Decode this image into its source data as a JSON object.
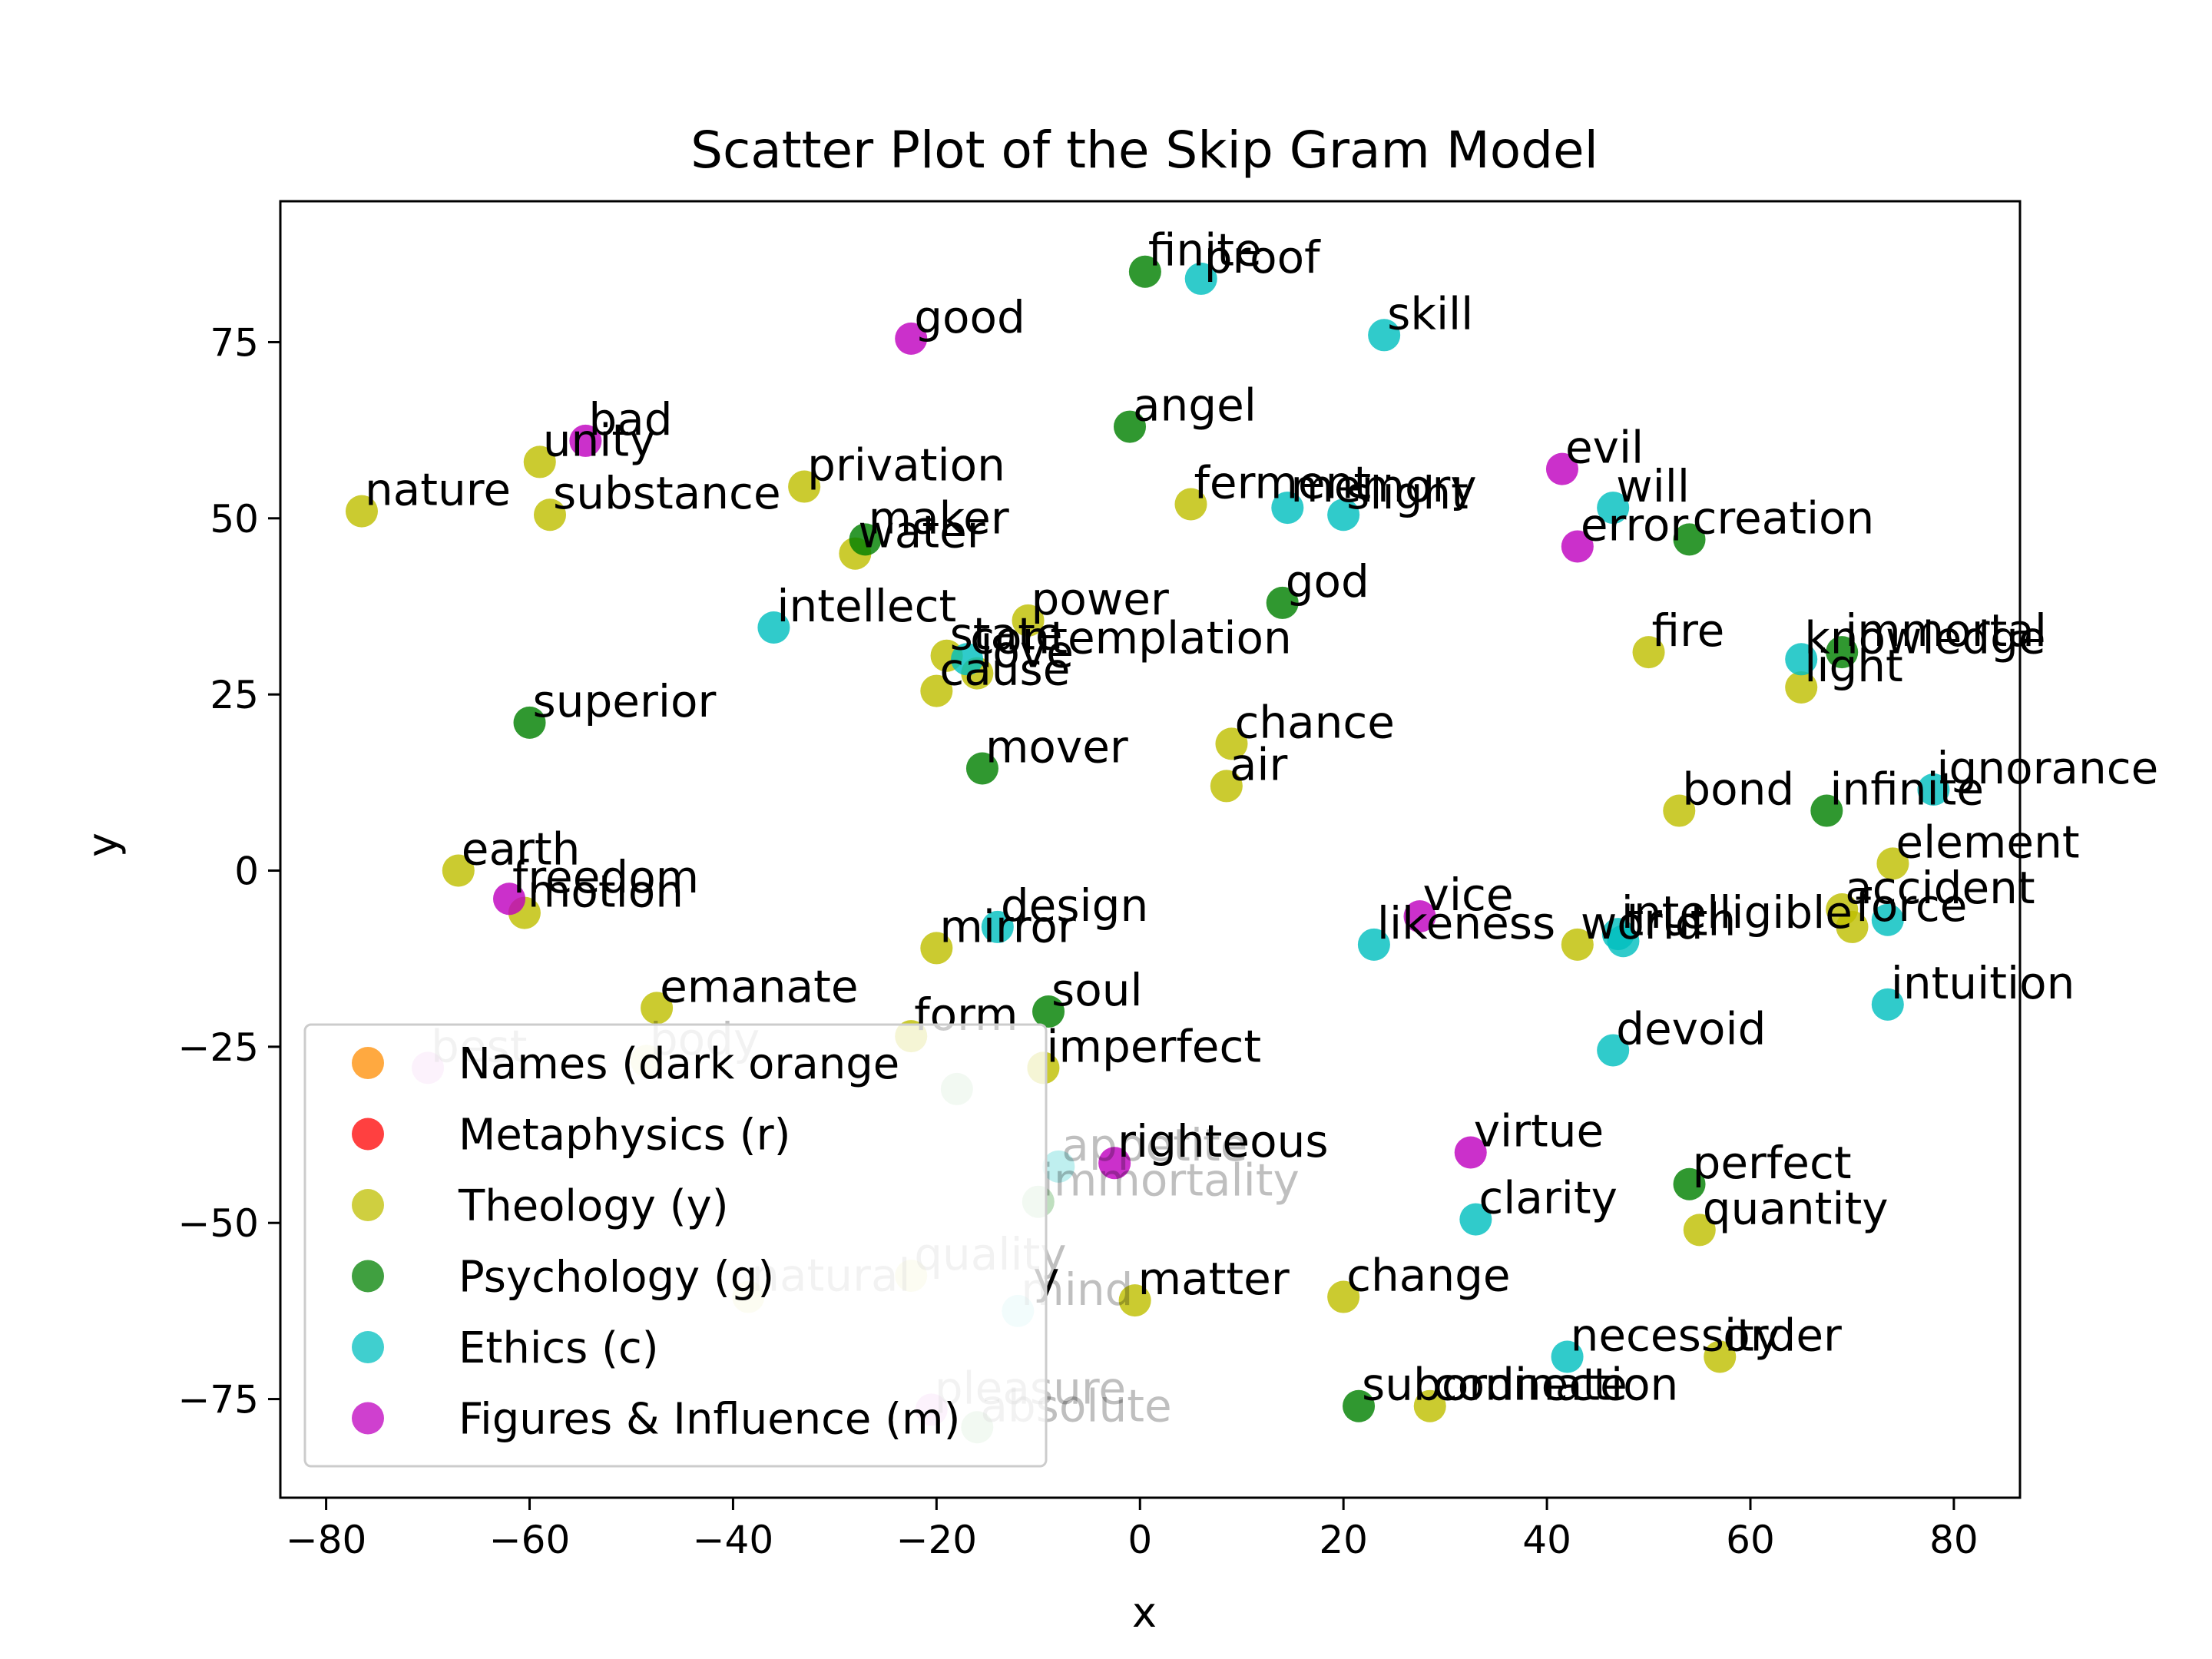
{
  "chart_data": {
    "type": "scatter",
    "title": "Scatter Plot of the Skip Gram Model",
    "xlabel": "x",
    "ylabel": "y",
    "xlim": [
      -84.5,
      86.5
    ],
    "ylim": [
      -89,
      95
    ],
    "xticks": [
      -80,
      -60,
      -40,
      -20,
      0,
      20,
      40,
      60,
      80
    ],
    "yticks": [
      -75,
      -50,
      -25,
      0,
      25,
      50,
      75
    ],
    "xtick_labels": [
      "−80",
      "−60",
      "−40",
      "−20",
      "0",
      "20",
      "40",
      "60",
      "80"
    ],
    "ytick_labels": [
      "−75",
      "−50",
      "−25",
      "0",
      "25",
      "50",
      "75"
    ],
    "grid": false,
    "legend_position": "lower-left",
    "series": [
      {
        "name": "Names (dark orange",
        "color": "#ff8c00",
        "points": []
      },
      {
        "name": "Metaphysics (r)",
        "color": "#ff0000",
        "points": []
      },
      {
        "name": "Theology (y)",
        "color": "#bfbf00",
        "points": [
          {
            "x": -76.5,
            "y": 51,
            "label": "nature"
          },
          {
            "x": -59,
            "y": 58,
            "label": "unity"
          },
          {
            "x": -58,
            "y": 50.5,
            "label": "substance"
          },
          {
            "x": -33,
            "y": 54.5,
            "label": "privation"
          },
          {
            "x": -28,
            "y": 45,
            "label": "water"
          },
          {
            "x": -11,
            "y": 35.5,
            "label": "power"
          },
          {
            "x": -19,
            "y": 30.5,
            "label": "state"
          },
          {
            "x": -16,
            "y": 28,
            "label": "love"
          },
          {
            "x": -20,
            "y": 25.5,
            "label": "cause"
          },
          {
            "x": 5,
            "y": 52,
            "label": "ferment"
          },
          {
            "x": 9,
            "y": 18,
            "label": "chance"
          },
          {
            "x": 8.5,
            "y": 12,
            "label": "air"
          },
          {
            "x": 50,
            "y": 31,
            "label": "fire"
          },
          {
            "x": 65,
            "y": 26,
            "label": "light"
          },
          {
            "x": 53,
            "y": 8.5,
            "label": "bond"
          },
          {
            "x": 74,
            "y": 1,
            "label": "element"
          },
          {
            "x": 69,
            "y": -5.5,
            "label": "accident"
          },
          {
            "x": 70,
            "y": -8,
            "label": "force"
          },
          {
            "x": -67,
            "y": 0,
            "label": "earth"
          },
          {
            "x": -60.5,
            "y": -6,
            "label": "motion"
          },
          {
            "x": -20,
            "y": -11,
            "label": "mirror"
          },
          {
            "x": 43,
            "y": -10.5,
            "label": "world"
          },
          {
            "x": -47.5,
            "y": -19.5,
            "label": "emanate"
          },
          {
            "x": -22.5,
            "y": -23.5,
            "label": "form"
          },
          {
            "x": -48.5,
            "y": -27,
            "label": "body",
            "faded": true
          },
          {
            "x": -9.5,
            "y": -28,
            "label": "imperfect"
          },
          {
            "x": -22.5,
            "y": -57.5,
            "label": "quality",
            "faded": true
          },
          {
            "x": -38.5,
            "y": -60.5,
            "label": "natural",
            "faded": true
          },
          {
            "x": -0.5,
            "y": -61,
            "label": "matter"
          },
          {
            "x": 20,
            "y": -60.5,
            "label": "change"
          },
          {
            "x": 55,
            "y": -51,
            "label": "quantity"
          },
          {
            "x": 57,
            "y": -69,
            "label": "order"
          },
          {
            "x": 28.5,
            "y": -76,
            "label": "connection"
          }
        ]
      },
      {
        "name": "Psychology (g)",
        "color": "#008000",
        "points": [
          {
            "x": 0.5,
            "y": 85,
            "label": "finite"
          },
          {
            "x": -1,
            "y": 63,
            "label": "angel"
          },
          {
            "x": -27,
            "y": 47,
            "label": "maker"
          },
          {
            "x": 14,
            "y": 38,
            "label": "god"
          },
          {
            "x": 54,
            "y": 47,
            "label": "creation"
          },
          {
            "x": 69,
            "y": 31,
            "label": "immortal"
          },
          {
            "x": -60,
            "y": 21,
            "label": "superior"
          },
          {
            "x": -15.5,
            "y": 14.5,
            "label": "mover"
          },
          {
            "x": 67.5,
            "y": 8.5,
            "label": "infinite"
          },
          {
            "x": -9,
            "y": -20,
            "label": "soul"
          },
          {
            "x": -18,
            "y": -31,
            "label": "",
            "faded": true
          },
          {
            "x": -10,
            "y": -47,
            "label": "immortality",
            "faded": true
          },
          {
            "x": 54,
            "y": -44.5,
            "label": "perfect"
          },
          {
            "x": 21.5,
            "y": -76,
            "label": "subordinate"
          },
          {
            "x": -16,
            "y": -79,
            "label": "absolute",
            "faded": true
          }
        ]
      },
      {
        "name": "Ethics (c)",
        "color": "#00bfbf",
        "points": [
          {
            "x": 6,
            "y": 84,
            "label": "proof"
          },
          {
            "x": 24,
            "y": 76,
            "label": "skill"
          },
          {
            "x": 14.5,
            "y": 51.5,
            "label": "memory"
          },
          {
            "x": 20,
            "y": 50.5,
            "label": "slight"
          },
          {
            "x": 46.5,
            "y": 51.5,
            "label": "will"
          },
          {
            "x": -36,
            "y": 34.5,
            "label": "intellect"
          },
          {
            "x": -17,
            "y": 30,
            "label": "contemplation"
          },
          {
            "x": 65,
            "y": 30,
            "label": "knowledge"
          },
          {
            "x": 78,
            "y": 11.5,
            "label": "ignorance"
          },
          {
            "x": -14,
            "y": -8,
            "label": "design"
          },
          {
            "x": 23,
            "y": -10.5,
            "label": "likeness"
          },
          {
            "x": 47.5,
            "y": -10,
            "label": "truth"
          },
          {
            "x": 47,
            "y": -9,
            "label": "intelligible"
          },
          {
            "x": 73.5,
            "y": -7,
            "label": ""
          },
          {
            "x": 73.5,
            "y": -19,
            "label": "intuition"
          },
          {
            "x": 46.5,
            "y": -25.5,
            "label": "devoid"
          },
          {
            "x": -8,
            "y": -42,
            "label": "appetite",
            "faded": true
          },
          {
            "x": 33,
            "y": -49.5,
            "label": "clarity"
          },
          {
            "x": -12,
            "y": -62.5,
            "label": "mind",
            "faded": true
          },
          {
            "x": 42,
            "y": -69,
            "label": "necessity"
          }
        ]
      },
      {
        "name": "Figures & Influence (m)",
        "color": "#bf00bf",
        "points": [
          {
            "x": -22.5,
            "y": 75.5,
            "label": "good"
          },
          {
            "x": -54.5,
            "y": 61,
            "label": "bad"
          },
          {
            "x": 41.5,
            "y": 57,
            "label": "evil"
          },
          {
            "x": 43,
            "y": 46,
            "label": "error"
          },
          {
            "x": -62,
            "y": -4,
            "label": "freedom"
          },
          {
            "x": 27.5,
            "y": -6.5,
            "label": "vice"
          },
          {
            "x": -2.5,
            "y": -41.5,
            "label": "righteous"
          },
          {
            "x": 32.5,
            "y": -40,
            "label": "virtue"
          },
          {
            "x": -70,
            "y": -28,
            "label": "best",
            "faded": true
          },
          {
            "x": -20.5,
            "y": -76.5,
            "label": "pleasure",
            "faded": true
          }
        ]
      }
    ],
    "floating_labels": [
      {
        "x": -10.5,
        "y": -60,
        "label": "y"
      }
    ]
  }
}
